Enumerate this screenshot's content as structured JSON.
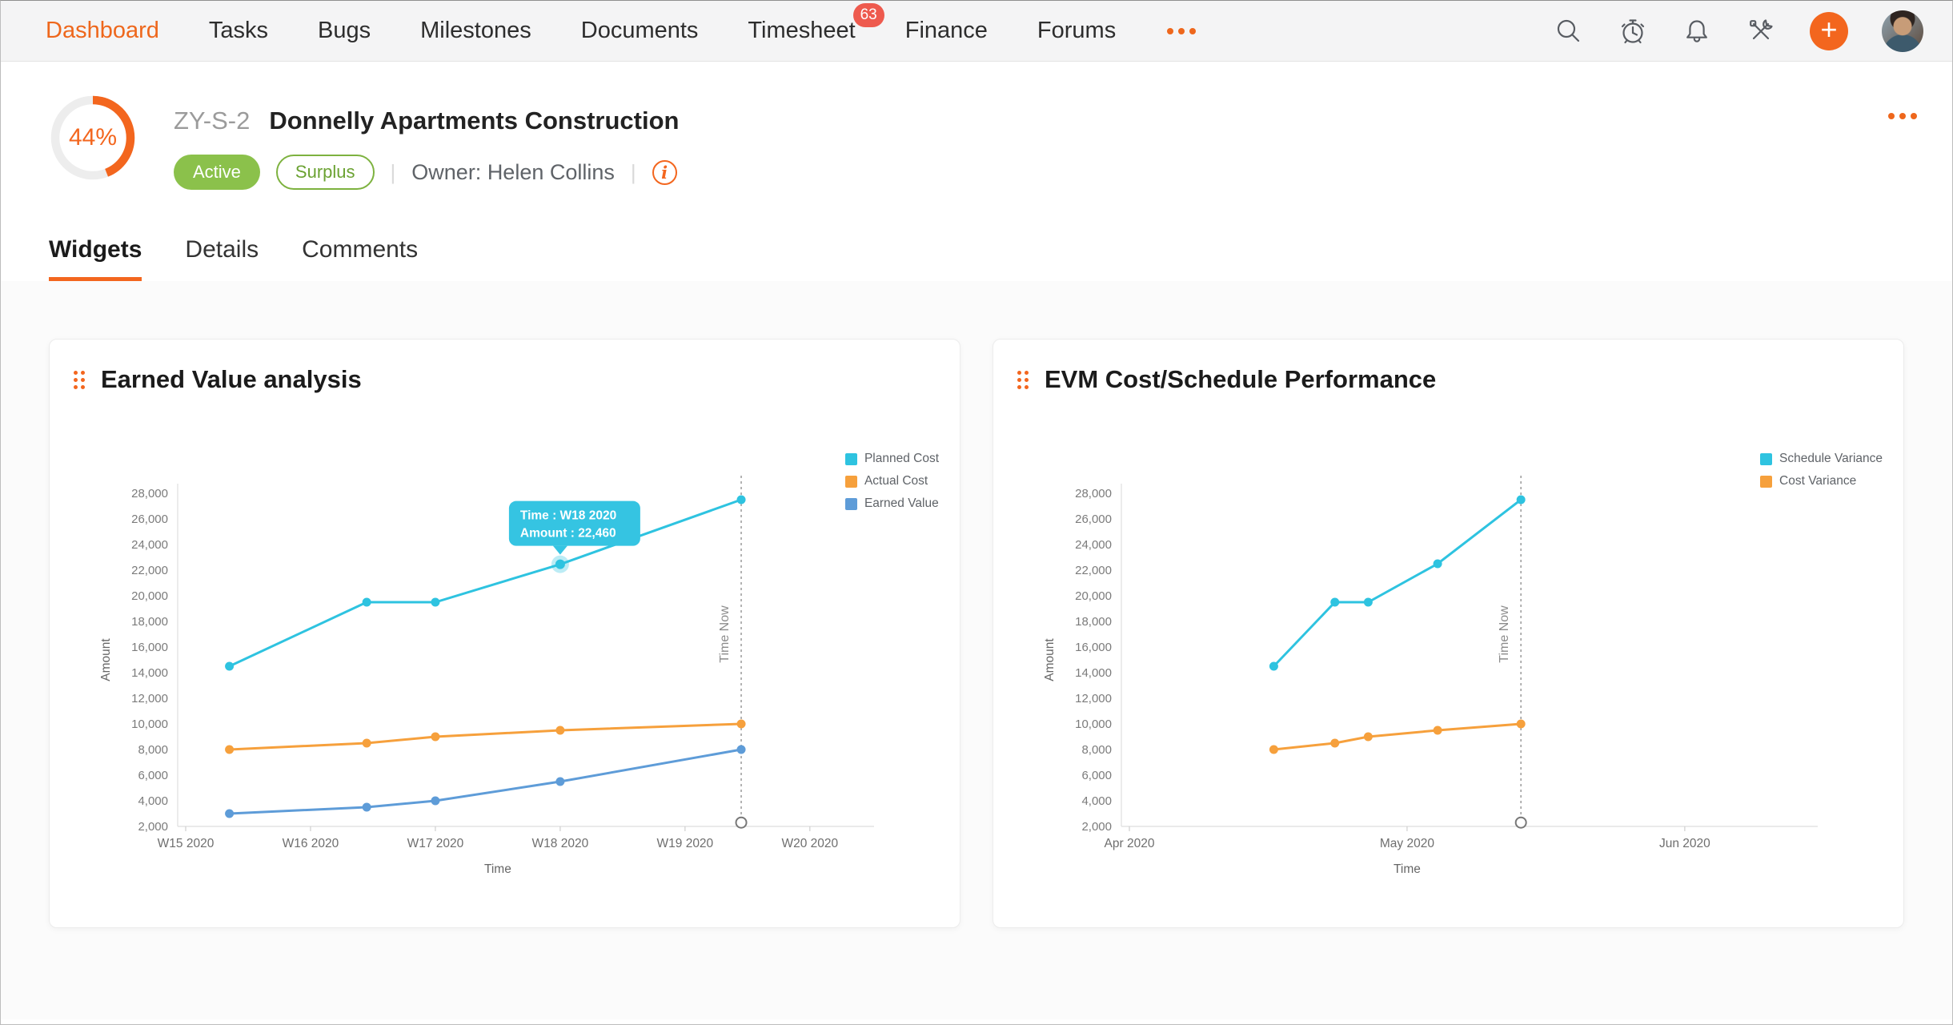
{
  "nav": {
    "items": [
      {
        "label": "Dashboard",
        "active": true
      },
      {
        "label": "Tasks"
      },
      {
        "label": "Bugs"
      },
      {
        "label": "Milestones"
      },
      {
        "label": "Documents"
      },
      {
        "label": "Timesheet",
        "badge": "63"
      },
      {
        "label": "Finance"
      },
      {
        "label": "Forums"
      }
    ],
    "icons": [
      "search",
      "timer",
      "bell",
      "tools"
    ],
    "add_button": "+"
  },
  "project": {
    "progress": "44%",
    "progress_pct": 44,
    "code": "ZY-S-2",
    "title": "Donnelly Apartments Construction",
    "status_badge": "Active",
    "budget_badge": "Surplus",
    "owner_label": "Owner:",
    "owner_name": "Helen Collins"
  },
  "tabs": [
    {
      "label": "Widgets",
      "active": true
    },
    {
      "label": "Details"
    },
    {
      "label": "Comments"
    }
  ],
  "colors": {
    "brand_orange": "#f3661e",
    "badge_green": "#8bc14b",
    "badge_red": "#ee5a4e",
    "series_cyan": "#2ec3e0",
    "series_orange": "#f6a03c",
    "series_blue": "#5e9cd8"
  },
  "chart_data": [
    {
      "type": "line",
      "title": "Earned Value analysis",
      "xlabel": "Time",
      "ylabel": "Amount",
      "ylim": [
        2000,
        28000
      ],
      "ytick_step": 2000,
      "grid": false,
      "legend_position": "right-top",
      "x_tick_labels": [
        "W15 2020",
        "W16 2020",
        "W17 2020",
        "W18 2020",
        "W19 2020",
        "W20 2020"
      ],
      "x_positions": [
        0.35,
        1.45,
        2.0,
        3.0,
        4.45
      ],
      "series": [
        {
          "name": "Planned Cost",
          "color": "#2ec3e0",
          "values": [
            14500,
            19500,
            19500,
            22460,
            27500
          ]
        },
        {
          "name": "Actual Cost",
          "color": "#f6a03c",
          "values": [
            8000,
            8500,
            9000,
            9500,
            10000
          ]
        },
        {
          "name": "Earned Value",
          "color": "#5e9cd8",
          "values": [
            3000,
            3500,
            4000,
            5500,
            8000
          ]
        }
      ],
      "time_now": {
        "x": 4.45,
        "label": "Time Now",
        "end_value": 2300
      },
      "tooltip": {
        "line1": "Time : W18 2020",
        "line2": "Amount : 22,460",
        "series": 0,
        "point": 3
      }
    },
    {
      "type": "line",
      "title": "EVM Cost/Schedule Performance",
      "xlabel": "Time",
      "ylabel": "Amount",
      "ylim": [
        2000,
        28000
      ],
      "ytick_step": 2000,
      "grid": false,
      "legend_position": "right-top",
      "x_tick_labels": [
        "Apr 2020",
        "May 2020",
        "Jun 2020"
      ],
      "x_positions": [
        0.52,
        0.74,
        0.86,
        1.11,
        1.41
      ],
      "series": [
        {
          "name": "Schedule Variance",
          "color": "#2ec3e0",
          "values": [
            14500,
            19500,
            19500,
            22500,
            27500
          ]
        },
        {
          "name": "Cost Variance",
          "color": "#f6a03c",
          "values": [
            8000,
            8500,
            9000,
            9500,
            10000
          ]
        }
      ],
      "time_now": {
        "x": 1.41,
        "label": "Time Now",
        "end_value": 2300
      }
    }
  ]
}
